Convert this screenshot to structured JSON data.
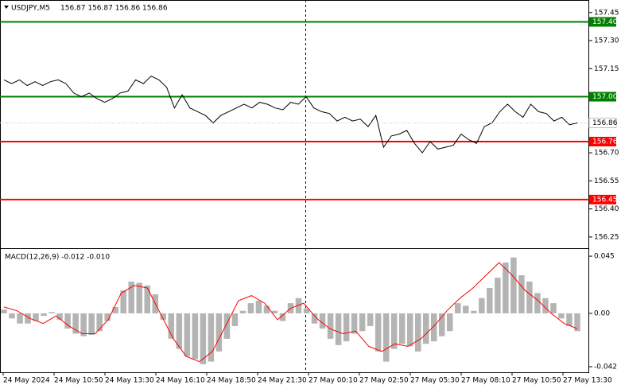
{
  "chart_data": [
    {
      "type": "line",
      "title": "USDJPY,M5",
      "subtitle": "156.87 156.87 156.86 156.86",
      "color": "#000000",
      "values": [
        157.09,
        157.07,
        157.09,
        157.06,
        157.08,
        157.06,
        157.08,
        157.09,
        157.07,
        157.02,
        157.0,
        157.02,
        156.99,
        156.97,
        156.99,
        157.02,
        157.03,
        157.09,
        157.07,
        157.11,
        157.09,
        157.05,
        156.94,
        157.01,
        156.94,
        156.92,
        156.9,
        156.86,
        156.9,
        156.92,
        156.94,
        156.96,
        156.94,
        156.97,
        156.96,
        156.94,
        156.93,
        156.97,
        156.96,
        157.0,
        156.94,
        156.92,
        156.91,
        156.87,
        156.89,
        156.87,
        156.88,
        156.84,
        156.9,
        156.73,
        156.79,
        156.8,
        156.82,
        156.75,
        156.7,
        156.76,
        156.72,
        156.73,
        156.74,
        156.8,
        156.77,
        156.75,
        156.84,
        156.86,
        156.92,
        156.96,
        156.92,
        156.89,
        156.96,
        156.92,
        156.91,
        156.87,
        156.89,
        156.85,
        156.86
      ],
      "ylim": [
        156.19,
        157.5
      ],
      "yticks": [
        157.45,
        {
          "value": 157.3,
          "label": "157.30"
        },
        157.15,
        {
          "value": 156.7,
          "label": "156.70"
        },
        156.55,
        {
          "value": 156.4,
          "label": "156.40"
        },
        156.25
      ],
      "levels": [
        {
          "value": 157.4,
          "label": "157.40",
          "color": "#008000"
        },
        {
          "value": 157.0,
          "label": "157.00",
          "color": "#008000"
        },
        {
          "value": 156.76,
          "label": "156.76",
          "color": "#ff0000"
        },
        {
          "value": 156.45,
          "label": "156.45",
          "color": "#ff0000"
        }
      ],
      "current_price": 156.86
    },
    {
      "type": "macd",
      "title": "MACD(12,26,9) -0.012 -0.010",
      "histogram": {
        "color": "#b4b4b4",
        "values": [
          0.003,
          -0.004,
          -0.008,
          -0.008,
          -0.006,
          -0.002,
          0.001,
          -0.005,
          -0.012,
          -0.016,
          -0.018,
          -0.017,
          -0.014,
          -0.006,
          0.005,
          0.018,
          0.025,
          0.024,
          0.022,
          0.015,
          -0.005,
          -0.02,
          -0.028,
          -0.034,
          -0.036,
          -0.04,
          -0.038,
          -0.03,
          -0.02,
          -0.01,
          0.002,
          0.008,
          0.01,
          0.006,
          0.002,
          -0.006,
          0.008,
          0.012,
          0.004,
          -0.008,
          -0.012,
          -0.02,
          -0.025,
          -0.022,
          -0.016,
          -0.014,
          -0.01,
          -0.03,
          -0.038,
          -0.028,
          -0.024,
          -0.026,
          -0.03,
          -0.024,
          -0.022,
          -0.018,
          -0.014,
          0.008,
          0.006,
          0.002,
          0.012,
          0.02,
          0.028,
          0.04,
          0.044,
          0.03,
          0.025,
          0.016,
          0.012,
          0.008,
          -0.004,
          -0.01,
          -0.014
        ]
      },
      "signal": {
        "color": "#ff0000",
        "values": [
          0.005,
          0.002,
          -0.004,
          -0.008,
          -0.002,
          -0.01,
          -0.016,
          -0.016,
          -0.005,
          0.016,
          0.022,
          0.02,
          0.0,
          -0.02,
          -0.034,
          -0.038,
          -0.03,
          -0.01,
          0.01,
          0.014,
          0.008,
          -0.005,
          0.004,
          0.008,
          -0.004,
          -0.012,
          -0.016,
          -0.014,
          -0.026,
          -0.03,
          -0.024,
          -0.026,
          -0.02,
          -0.01,
          0.002,
          0.012,
          0.02,
          0.03,
          0.04,
          0.03,
          0.018,
          0.01,
          0.0,
          -0.008,
          -0.012
        ]
      },
      "ylim": [
        -0.0464,
        0.0488
      ],
      "yticks": [
        0.045,
        {
          "value": 0,
          "label": "0.00"
        },
        -0.042
      ]
    }
  ],
  "time_axis": [
    "24 May 2024",
    "24 May 10:50",
    "24 May 13:30",
    "24 May 16:10",
    "24 May 18:50",
    "24 May 21:30",
    "27 May 00:10",
    "27 May 02:50",
    "27 May 05:30",
    "27 May 08:10",
    "27 May 10:50",
    "27 May 13:30"
  ]
}
